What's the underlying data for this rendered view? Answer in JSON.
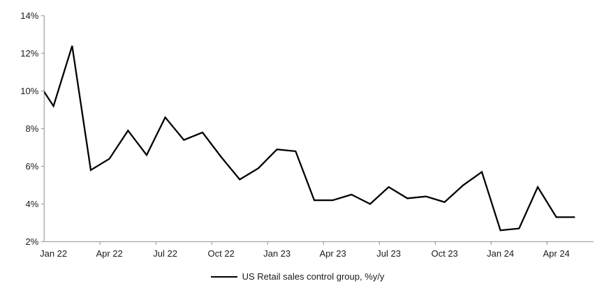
{
  "chart_data": {
    "type": "line",
    "title": "",
    "xlabel": "",
    "ylabel": "",
    "ylim": [
      2,
      14
    ],
    "y_tick_step": 2,
    "y_ticks": [
      "14%",
      "12%",
      "10%",
      "8%",
      "6%",
      "4%",
      "2%"
    ],
    "y_tick_values": [
      14,
      12,
      10,
      8,
      6,
      4,
      2
    ],
    "x": [
      "Jan 22",
      "Feb 22",
      "Mar 22",
      "Apr 22",
      "May 22",
      "Jun 22",
      "Jul 22",
      "Aug 22",
      "Sep 22",
      "Oct 22",
      "Nov 22",
      "Dec 22",
      "Jan 23",
      "Feb 23",
      "Mar 23",
      "Apr 23",
      "May 23",
      "Jun 23",
      "Jul 23",
      "Aug 23",
      "Sep 23",
      "Oct 23",
      "Nov 23",
      "Dec 23",
      "Jan 24",
      "Feb 24",
      "Mar 24",
      "Apr 24",
      "May 24"
    ],
    "x_tick_labels": [
      "Jan 22",
      "Apr 22",
      "Jul 22",
      "Oct 22",
      "Jan 23",
      "Apr 23",
      "Jul 23",
      "Oct 23",
      "Jan 24",
      "Apr 24"
    ],
    "series": [
      {
        "name": "US Retail sales control group, %y/y",
        "color": "#000000",
        "values": [
          9.2,
          12.4,
          5.8,
          6.4,
          7.9,
          6.6,
          8.6,
          7.4,
          7.8,
          6.5,
          5.3,
          5.9,
          6.9,
          6.8,
          4.2,
          4.2,
          4.5,
          4.0,
          4.9,
          4.3,
          4.4,
          4.1,
          5.0,
          5.7,
          2.6,
          2.7,
          4.9,
          3.3,
          3.3
        ]
      }
    ],
    "lead_in": {
      "value": 10.7,
      "note": "line enters plot clipped at left axis at ~10%"
    },
    "grid": false,
    "legend_position": "bottom-center",
    "axis_color": "#a6a6a6",
    "text_color": "#1a1a1a",
    "background_color": "#ffffff"
  },
  "legend": {
    "label": "US Retail sales control group, %y/y"
  }
}
